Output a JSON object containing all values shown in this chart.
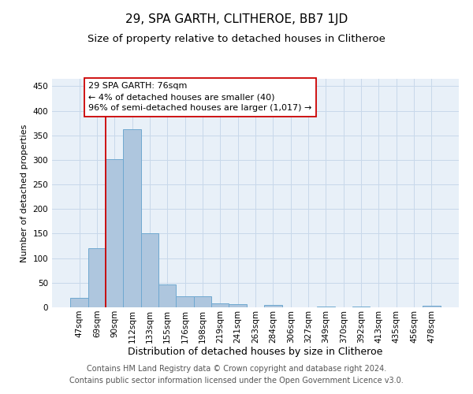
{
  "title1": "29, SPA GARTH, CLITHEROE, BB7 1JD",
  "title2": "Size of property relative to detached houses in Clitheroe",
  "xlabel": "Distribution of detached houses by size in Clitheroe",
  "ylabel": "Number of detached properties",
  "categories": [
    "47sqm",
    "69sqm",
    "90sqm",
    "112sqm",
    "133sqm",
    "155sqm",
    "176sqm",
    "198sqm",
    "219sqm",
    "241sqm",
    "263sqm",
    "284sqm",
    "306sqm",
    "327sqm",
    "349sqm",
    "370sqm",
    "392sqm",
    "413sqm",
    "435sqm",
    "456sqm",
    "478sqm"
  ],
  "values": [
    20,
    120,
    302,
    362,
    150,
    47,
    22,
    22,
    8,
    6,
    0,
    5,
    0,
    0,
    2,
    0,
    2,
    0,
    0,
    0,
    3
  ],
  "bar_color": "#aec6de",
  "bar_edge_color": "#6fa8d0",
  "annotation_box_text": "29 SPA GARTH: 76sqm\n← 4% of detached houses are smaller (40)\n96% of semi-detached houses are larger (1,017) →",
  "annotation_line_color": "#cc0000",
  "annotation_box_edge_color": "#cc0000",
  "ylim": [
    0,
    465
  ],
  "yticks": [
    0,
    50,
    100,
    150,
    200,
    250,
    300,
    350,
    400,
    450
  ],
  "grid_color": "#c8d8ea",
  "background_color": "#e8f0f8",
  "footer_text": "Contains HM Land Registry data © Crown copyright and database right 2024.\nContains public sector information licensed under the Open Government Licence v3.0.",
  "title1_fontsize": 11,
  "title2_fontsize": 9.5,
  "xlabel_fontsize": 9,
  "ylabel_fontsize": 8,
  "tick_fontsize": 7.5,
  "annotation_fontsize": 8,
  "footer_fontsize": 7
}
